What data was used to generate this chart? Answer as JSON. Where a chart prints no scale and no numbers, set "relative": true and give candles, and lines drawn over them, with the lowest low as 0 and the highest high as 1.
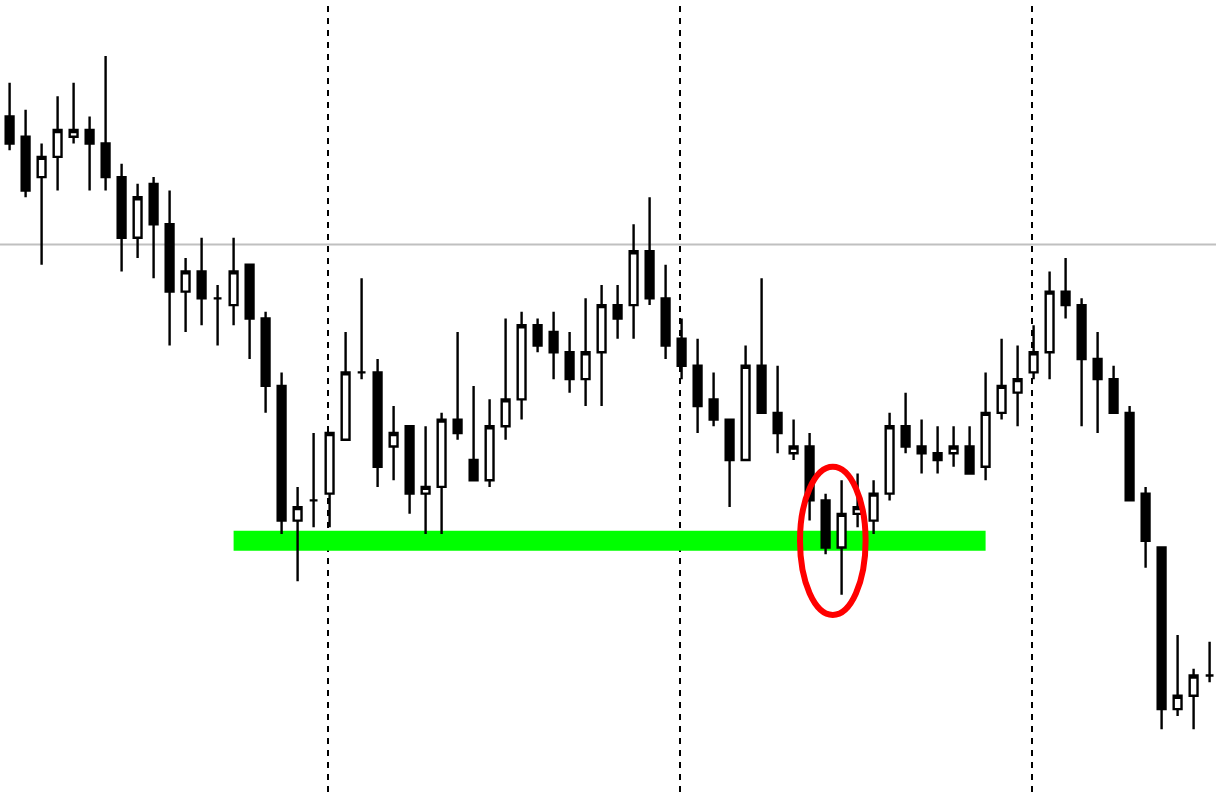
{
  "chart_data": {
    "type": "candlestick",
    "relative": true,
    "grid": "x",
    "categories": [
      null,
      null,
      null,
      null,
      null,
      null,
      null,
      null,
      null,
      null,
      null,
      null,
      null,
      null,
      null,
      null,
      null,
      null,
      null,
      null,
      null,
      null,
      null,
      null,
      null,
      null,
      null,
      null,
      null,
      null,
      null,
      null,
      null,
      null,
      null,
      null,
      null,
      null,
      null,
      null,
      null,
      null,
      null,
      null,
      null,
      null,
      null,
      null,
      null,
      null,
      null,
      null,
      null,
      null,
      null,
      null,
      null,
      null,
      null,
      null,
      null,
      null,
      null,
      null,
      null,
      null,
      null,
      null,
      null,
      null,
      null,
      null,
      null,
      null,
      null,
      null
    ],
    "ohlc": [
      [
        0.91,
        0.96,
        0.86,
        0.87
      ],
      [
        0.88,
        0.92,
        0.79,
        0.8
      ],
      [
        0.82,
        0.87,
        0.69,
        0.85
      ],
      [
        0.85,
        0.94,
        0.8,
        0.89
      ],
      [
        0.88,
        0.96,
        0.87,
        0.89
      ],
      [
        0.89,
        0.91,
        0.8,
        0.87
      ],
      [
        0.87,
        1,
        0.8,
        0.82
      ],
      [
        0.82,
        0.84,
        0.68,
        0.73
      ],
      [
        0.73,
        0.81,
        0.7,
        0.79
      ],
      [
        0.81,
        0.82,
        0.67,
        0.75
      ],
      [
        0.75,
        0.8,
        0.57,
        0.65
      ],
      [
        0.65,
        0.7,
        0.59,
        0.68
      ],
      [
        0.68,
        0.73,
        0.6,
        0.64
      ],
      [
        0.64,
        0.66,
        0.57,
        0.64
      ],
      [
        0.63,
        0.73,
        0.6,
        0.68
      ],
      [
        0.69,
        0.69,
        0.55,
        0.61
      ],
      [
        0.61,
        0.62,
        0.47,
        0.51
      ],
      [
        0.51,
        0.53,
        0.29,
        0.31
      ],
      [
        0.31,
        0.36,
        0.22,
        0.33
      ],
      [
        0.34,
        0.44,
        0.3,
        0.34
      ],
      [
        0.35,
        0.44,
        0.3,
        0.44
      ],
      [
        0.43,
        0.59,
        0.43,
        0.53
      ],
      [
        0.53,
        0.67,
        0.52,
        0.53
      ],
      [
        0.53,
        0.55,
        0.36,
        0.39
      ],
      [
        0.42,
        0.48,
        0.37,
        0.44
      ],
      [
        0.45,
        0.45,
        0.32,
        0.35
      ],
      [
        0.35,
        0.45,
        0.29,
        0.36
      ],
      [
        0.36,
        0.47,
        0.29,
        0.46
      ],
      [
        0.46,
        0.59,
        0.43,
        0.44
      ],
      [
        0.4,
        0.51,
        0.37,
        0.37
      ],
      [
        0.37,
        0.49,
        0.36,
        0.45
      ],
      [
        0.45,
        0.61,
        0.43,
        0.49
      ],
      [
        0.49,
        0.62,
        0.46,
        0.6
      ],
      [
        0.6,
        0.61,
        0.56,
        0.57
      ],
      [
        0.59,
        0.62,
        0.52,
        0.56
      ],
      [
        0.56,
        0.59,
        0.5,
        0.52
      ],
      [
        0.52,
        0.64,
        0.48,
        0.56
      ],
      [
        0.56,
        0.66,
        0.48,
        0.63
      ],
      [
        0.63,
        0.66,
        0.58,
        0.61
      ],
      [
        0.63,
        0.75,
        0.58,
        0.71
      ],
      [
        0.71,
        0.79,
        0.63,
        0.64
      ],
      [
        0.64,
        0.69,
        0.55,
        0.57
      ],
      [
        0.58,
        0.61,
        0.52,
        0.54
      ],
      [
        0.54,
        0.58,
        0.44,
        0.48
      ],
      [
        0.49,
        0.53,
        0.45,
        0.46
      ],
      [
        0.46,
        0.46,
        0.33,
        0.4
      ],
      [
        0.4,
        0.57,
        0.4,
        0.54
      ],
      [
        0.54,
        0.67,
        0.47,
        0.47
      ],
      [
        0.47,
        0.54,
        0.41,
        0.44
      ],
      [
        0.41,
        0.46,
        0.4,
        0.42
      ],
      [
        0.42,
        0.44,
        0.31,
        0.34
      ],
      [
        0.34,
        0.35,
        0.26,
        0.27
      ],
      [
        0.27,
        0.37,
        0.2,
        0.32
      ],
      [
        0.32,
        0.38,
        0.3,
        0.33
      ],
      [
        0.31,
        0.37,
        0.29,
        0.35
      ],
      [
        0.35,
        0.47,
        0.34,
        0.45
      ],
      [
        0.45,
        0.5,
        0.41,
        0.42
      ],
      [
        0.42,
        0.46,
        0.38,
        0.41
      ],
      [
        0.41,
        0.45,
        0.38,
        0.4
      ],
      [
        0.41,
        0.45,
        0.39,
        0.42
      ],
      [
        0.42,
        0.45,
        0.38,
        0.38
      ],
      [
        0.39,
        0.53,
        0.37,
        0.47
      ],
      [
        0.47,
        0.58,
        0.46,
        0.51
      ],
      [
        0.5,
        0.57,
        0.45,
        0.52
      ],
      [
        0.53,
        0.6,
        0.52,
        0.56
      ],
      [
        0.56,
        0.68,
        0.52,
        0.65
      ],
      [
        0.65,
        0.7,
        0.61,
        0.63
      ],
      [
        0.63,
        0.64,
        0.45,
        0.55
      ],
      [
        0.55,
        0.59,
        0.44,
        0.52
      ],
      [
        0.52,
        0.54,
        0.47,
        0.47
      ],
      [
        0.47,
        0.48,
        0.34,
        0.34
      ],
      [
        0.35,
        0.36,
        0.24,
        0.28
      ],
      [
        0.27,
        0.27,
        0,
        0.03
      ],
      [
        0.03,
        0.14,
        0.02,
        0.05
      ],
      [
        0.05,
        0.09,
        0,
        0.08
      ],
      [
        0.08,
        0.13,
        0.07,
        0.08
      ]
    ],
    "series": [
      {
        "type": "line",
        "color": "#00ff00",
        "values": [
          null,
          null,
          null,
          null,
          null,
          null,
          null,
          null,
          null,
          null,
          null,
          null,
          null,
          null,
          0.28,
          0.28,
          0.28,
          0.28,
          0.28,
          0.28,
          0.28,
          0.28,
          0.28,
          0.28,
          0.28,
          0.28,
          0.28,
          0.28,
          0.28,
          0.28,
          0.28,
          0.28,
          0.28,
          0.28,
          0.28,
          0.28,
          0.28,
          0.28,
          0.28,
          0.28,
          0.28,
          0.28,
          0.28,
          0.28,
          0.28,
          0.28,
          0.28,
          0.28,
          0.28,
          0.28,
          0.28,
          0.28,
          0.28,
          0.28,
          0.28,
          0.28,
          0.28,
          0.28,
          0.28,
          0.28,
          0.28,
          0.28,
          null,
          null,
          null,
          null,
          null,
          null,
          null,
          null,
          null,
          null,
          null,
          null,
          null,
          null
        ]
      }
    ],
    "ref_lines": [
      {
        "axis": "y",
        "value": 0.72,
        "color": "#c0c0c0"
      }
    ]
  }
}
